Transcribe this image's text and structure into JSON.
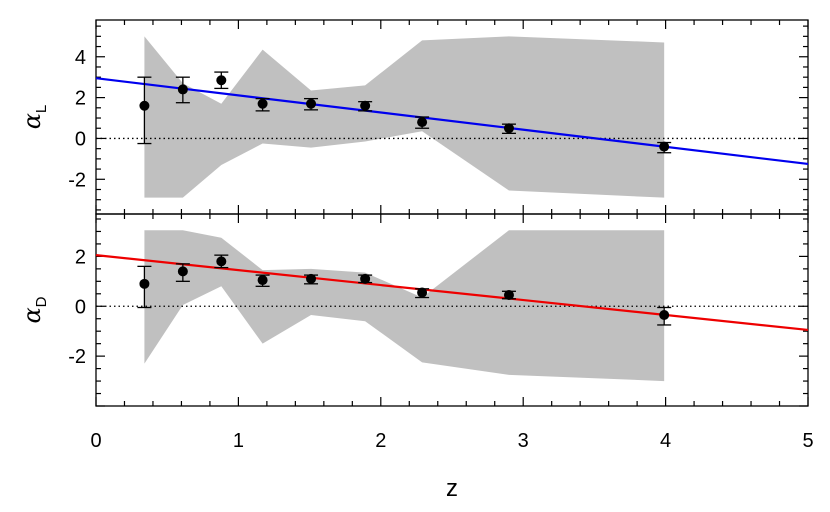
{
  "chart_data": {
    "type": "scatter",
    "xlabel": "z",
    "xlim": [
      0,
      5
    ],
    "xticks": [
      0,
      1,
      2,
      3,
      4,
      5
    ],
    "panels": [
      {
        "ylabel_main": "α",
        "ylabel_sub": "L",
        "ylim": [
          -3.7,
          5.8
        ],
        "yticks": [
          -2,
          0,
          2,
          4
        ],
        "zero_line": "dotted",
        "points": {
          "x": [
            0.34,
            0.61,
            0.88,
            1.17,
            1.51,
            1.89,
            2.29,
            2.9,
            3.99
          ],
          "y": [
            1.6,
            2.4,
            2.85,
            1.7,
            1.7,
            1.6,
            0.8,
            0.5,
            -0.4
          ],
          "err_low": [
            1.85,
            0.65,
            0.4,
            0.35,
            0.3,
            0.25,
            0.3,
            0.25,
            0.3
          ],
          "err_high": [
            1.4,
            0.6,
            0.4,
            0.25,
            0.25,
            0.2,
            0.25,
            0.2,
            0.2
          ]
        },
        "band": {
          "x": [
            0.34,
            0.61,
            0.88,
            1.17,
            1.51,
            1.89,
            2.29,
            2.9,
            3.99
          ],
          "lower": [
            -2.9,
            -2.9,
            -1.3,
            -0.25,
            -0.45,
            -0.15,
            0.35,
            -2.55,
            -2.9
          ],
          "upper": [
            5.0,
            2.7,
            1.7,
            4.35,
            2.35,
            2.6,
            4.8,
            5.0,
            4.7
          ]
        },
        "fit_line": {
          "x": [
            0,
            5
          ],
          "y": [
            2.95,
            -1.25
          ],
          "color": "#0000ee"
        }
      },
      {
        "ylabel_main": "α",
        "ylabel_sub": "D",
        "ylim": [
          -4.0,
          3.7
        ],
        "yticks": [
          -2,
          0,
          2
        ],
        "zero_line": "dotted",
        "points": {
          "x": [
            0.34,
            0.61,
            0.88,
            1.17,
            1.51,
            1.89,
            2.29,
            2.9,
            3.99
          ],
          "y": [
            0.9,
            1.4,
            1.8,
            1.05,
            1.1,
            1.1,
            0.55,
            0.45,
            -0.35
          ],
          "err_low": [
            0.95,
            0.4,
            0.25,
            0.25,
            0.2,
            0.15,
            0.2,
            0.15,
            0.4
          ],
          "err_high": [
            0.7,
            0.3,
            0.25,
            0.2,
            0.15,
            0.15,
            0.15,
            0.15,
            0.3
          ]
        },
        "band": {
          "x": [
            0.34,
            0.61,
            0.88,
            1.17,
            1.51,
            1.89,
            2.29,
            2.9,
            3.99
          ],
          "lower": [
            -2.3,
            0.05,
            0.8,
            -1.5,
            -0.35,
            -0.6,
            -2.25,
            -2.75,
            -3.0
          ],
          "upper": [
            3.05,
            3.05,
            2.75,
            1.45,
            1.5,
            1.35,
            0.35,
            3.05,
            3.05
          ]
        },
        "fit_line": {
          "x": [
            0,
            5
          ],
          "y": [
            2.05,
            -0.95
          ],
          "color": "#ee0000"
        }
      }
    ]
  }
}
